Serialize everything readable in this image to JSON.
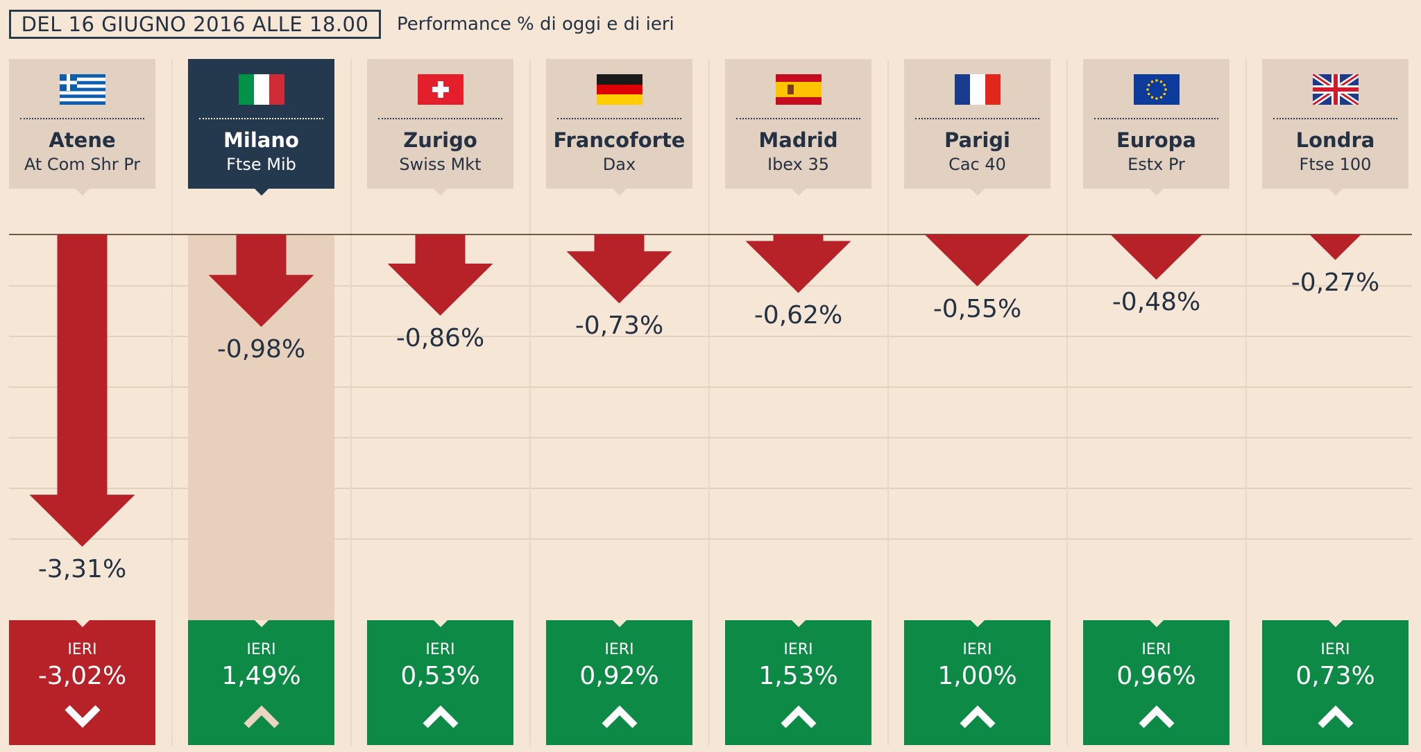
{
  "header": {
    "date_label": "DEL 16 GIUGNO 2016 ALLE 18.00",
    "subtitle": "Performance % di oggi e di ieri"
  },
  "ieri_label": "IERI",
  "colors": {
    "background": "#f5e6d6",
    "card": "#e2d1c1",
    "card_active": "#24394d",
    "down_red": "#b72228",
    "up_green": "#0d8a46",
    "text_dark": "#233142"
  },
  "markets": [
    {
      "city": "Atene",
      "index": "At Com Shr Pr",
      "flag": "greece-flag-icon",
      "today_label": "-3,31%",
      "yesterday_label": "-3,02%",
      "yesterday_direction": "down",
      "active": false
    },
    {
      "city": "Milano",
      "index": "Ftse Mib",
      "flag": "italy-flag-icon",
      "today_label": "-0,98%",
      "yesterday_label": "1,49%",
      "yesterday_direction": "up",
      "active": true
    },
    {
      "city": "Zurigo",
      "index": "Swiss Mkt",
      "flag": "switzerland-flag-icon",
      "today_label": "-0,86%",
      "yesterday_label": "0,53%",
      "yesterday_direction": "up",
      "active": false
    },
    {
      "city": "Francoforte",
      "index": "Dax",
      "flag": "germany-flag-icon",
      "today_label": "-0,73%",
      "yesterday_label": "0,92%",
      "yesterday_direction": "up",
      "active": false
    },
    {
      "city": "Madrid",
      "index": "Ibex 35",
      "flag": "spain-flag-icon",
      "today_label": "-0,62%",
      "yesterday_label": "1,53%",
      "yesterday_direction": "up",
      "active": false
    },
    {
      "city": "Parigi",
      "index": "Cac 40",
      "flag": "france-flag-icon",
      "today_label": "-0,55%",
      "yesterday_label": "1,00%",
      "yesterday_direction": "up",
      "active": false
    },
    {
      "city": "Europa",
      "index": "Estx Pr",
      "flag": "eu-flag-icon",
      "today_label": "-0,48%",
      "yesterday_label": "0,96%",
      "yesterday_direction": "up",
      "active": false
    },
    {
      "city": "Londra",
      "index": "Ftse 100",
      "flag": "uk-flag-icon",
      "today_label": "-0,27%",
      "yesterday_label": "0,73%",
      "yesterday_direction": "up",
      "active": false
    }
  ],
  "chart_data": {
    "type": "bar",
    "categories": [
      "Atene",
      "Milano",
      "Zurigo",
      "Francoforte",
      "Madrid",
      "Parigi",
      "Europa",
      "Londra"
    ],
    "series": [
      {
        "name": "oggi",
        "values": [
          -3.31,
          -0.98,
          -0.86,
          -0.73,
          -0.62,
          -0.55,
          -0.48,
          -0.27
        ]
      },
      {
        "name": "IERI",
        "values": [
          -3.02,
          1.49,
          0.53,
          0.92,
          1.53,
          1.0,
          0.96,
          0.73
        ]
      }
    ],
    "title": "DEL 16 GIUGNO 2016 ALLE 18.00",
    "subtitle": "Performance % di oggi e di ieri",
    "xlabel": "",
    "ylabel": "",
    "grid": true
  }
}
